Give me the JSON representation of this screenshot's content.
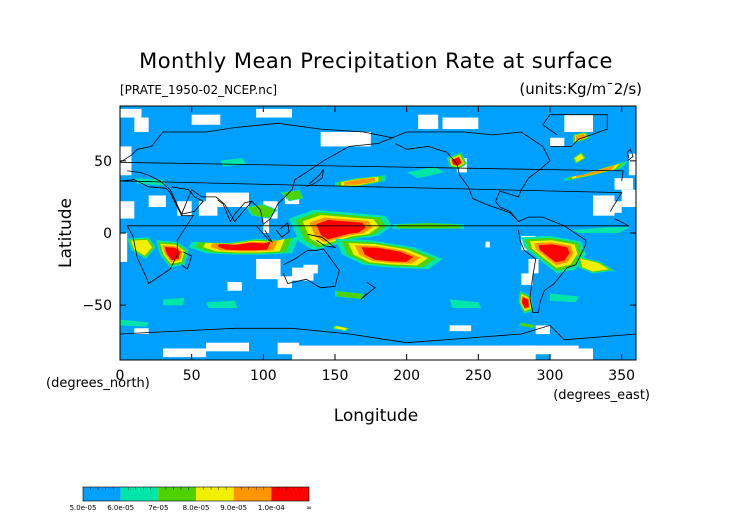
{
  "chart_data": {
    "type": "heatmap",
    "title": "Monthly Mean Precipitation Rate at surface",
    "source_file": "[PRATE_1950-02_NCEP.nc]",
    "units_label": "(units:Kg/m¯2/s)",
    "xlabel": "Longitude",
    "ylabel": "Latitude",
    "x_unit_label": "(degrees_east)",
    "y_unit_label": "(degrees_north)",
    "xlim": [
      0,
      360
    ],
    "ylim": [
      -88,
      88
    ],
    "x_ticks": [
      0,
      50,
      100,
      150,
      200,
      250,
      300,
      350
    ],
    "y_ticks": [
      50,
      0,
      -50
    ],
    "x_tick_labels": [
      "0",
      "50",
      "100",
      "150",
      "200",
      "250",
      "300",
      "350"
    ],
    "y_tick_labels": [
      "50",
      "0",
      "−50"
    ],
    "colorbar": {
      "bins": [
        {
          "lower": "5.0e-05",
          "color": "#00a0ff"
        },
        {
          "lower": "6.0e-05",
          "color": "#00e6aa"
        },
        {
          "lower": "7e-05",
          "color": "#50d200"
        },
        {
          "lower": "8.0e-05",
          "color": "#f0f000"
        },
        {
          "lower": "9.0e-05",
          "color": "#ff9600"
        },
        {
          "lower": "1.0e-04",
          "color": "#ff0000"
        }
      ],
      "tick_labels": [
        "5.0e-05",
        "6.0e-05",
        "7e-05",
        "8.0e-05",
        "9.0e-05",
        "1.0e-04",
        "∞"
      ]
    },
    "colors": {
      "background_field": "#00a0ff",
      "missing": "#ffffff",
      "coastline": "#000000"
    },
    "regions_above_threshold": [
      {
        "lon": [
          125,
          185
        ],
        "lat": [
          -5,
          15
        ],
        "level": 6
      },
      {
        "lon": [
          130,
          170
        ],
        "lat": [
          -15,
          5
        ],
        "level": 6
      },
      {
        "lon": [
          160,
          210
        ],
        "lat": [
          -25,
          -5
        ],
        "level": 6
      },
      {
        "lon": [
          50,
          130
        ],
        "lat": [
          -15,
          -3
        ],
        "level": 6
      },
      {
        "lon": [
          290,
          320
        ],
        "lat": [
          -25,
          -5
        ],
        "level": 6
      },
      {
        "lon": [
          30,
          50
        ],
        "lat": [
          -22,
          -5
        ],
        "level": 5
      },
      {
        "lon": [
          150,
          185
        ],
        "lat": [
          30,
          42
        ],
        "level": 4
      },
      {
        "lon": [
          315,
          345
        ],
        "lat": [
          35,
          47
        ],
        "level": 4
      },
      {
        "lon": [
          228,
          242
        ],
        "lat": [
          45,
          58
        ],
        "level": 5
      },
      {
        "lon": [
          280,
          290
        ],
        "lat": [
          -52,
          -38
        ],
        "level": 5
      }
    ]
  }
}
